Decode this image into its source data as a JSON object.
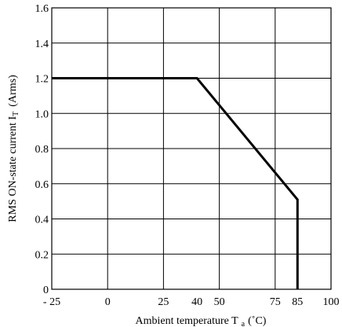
{
  "chart_data": {
    "type": "line",
    "title": "",
    "xlabel": "Ambient temperature T a (˚C)",
    "xlabel_main": "Ambient temperature T",
    "xlabel_sub": "a",
    "xlabel_unit": "(˚C)",
    "ylabel": "RMS ON-state current IT (Arms)",
    "ylabel_main": "RMS ON-state current I",
    "ylabel_sub": "T",
    "ylabel_unit": "(Arms)",
    "xlim": [
      -25,
      100
    ],
    "ylim": [
      0,
      1.6
    ],
    "grid": true,
    "x_ticks": [
      {
        "value": -25,
        "label": "- 25"
      },
      {
        "value": 0,
        "label": "0"
      },
      {
        "value": 25,
        "label": "25"
      },
      {
        "value": 40,
        "label": "40"
      },
      {
        "value": 50,
        "label": "50"
      },
      {
        "value": 75,
        "label": "75"
      },
      {
        "value": 85,
        "label": "85"
      },
      {
        "value": 100,
        "label": "100"
      }
    ],
    "x_gridlines": [
      -25,
      0,
      25,
      50,
      75,
      100
    ],
    "y_ticks": [
      {
        "value": 0,
        "label": "0"
      },
      {
        "value": 0.2,
        "label": "0.2"
      },
      {
        "value": 0.4,
        "label": "0.4"
      },
      {
        "value": 0.6,
        "label": "0.6"
      },
      {
        "value": 0.8,
        "label": "0.8"
      },
      {
        "value": 1.0,
        "label": "1.0"
      },
      {
        "value": 1.2,
        "label": "1.2"
      },
      {
        "value": 1.4,
        "label": "1.4"
      },
      {
        "value": 1.6,
        "label": "1.6"
      }
    ],
    "series": [
      {
        "x": [
          -25,
          40,
          85,
          85
        ],
        "y": [
          1.2,
          1.2,
          0.51,
          0
        ]
      }
    ]
  }
}
